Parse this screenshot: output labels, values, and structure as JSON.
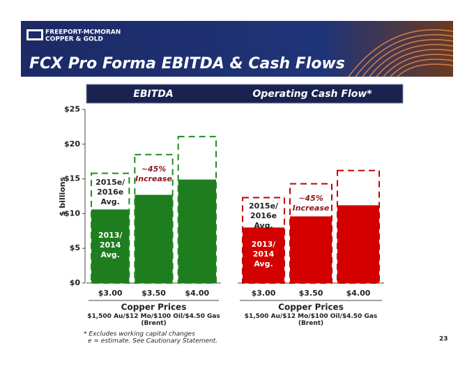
{
  "header": {
    "logo_line1": "FREEPORT-MCMORAN",
    "logo_line2": "COPPER & GOLD",
    "title": "FCX Pro Forma EBITDA & Cash Flows"
  },
  "chart_data": [
    {
      "type": "bar",
      "title": "EBITDA",
      "ylabel": "$ billions",
      "categories": [
        "$3.00",
        "$3.50",
        "$4.00"
      ],
      "series": [
        {
          "name": "2013/ 2014 Avg.",
          "color": "#1e7d1e",
          "values": [
            10.6,
            12.7,
            14.9
          ]
        },
        {
          "name": "2015e/ 2016e Avg.",
          "color": "#1e8c1e",
          "line_style": "dashed",
          "values": [
            15.8,
            18.5,
            21.1
          ]
        }
      ],
      "annotation": "~45% Increase",
      "xlabel": "Copper Prices",
      "xsublabel": "$1,500 Au/$12 Mo/$100 Oil/$4.50 Gas (Brent)",
      "ylim": [
        0,
        25
      ],
      "yticks": [
        {
          "value": 0,
          "label": "$0"
        },
        {
          "value": 5,
          "label": "$5"
        },
        {
          "value": 10,
          "label": "$10"
        },
        {
          "value": 15,
          "label": "$15"
        },
        {
          "value": 20,
          "label": "$20"
        },
        {
          "value": 25,
          "label": "$25"
        }
      ]
    },
    {
      "type": "bar",
      "title": "Operating Cash Flow*",
      "categories": [
        "$3.00",
        "$3.50",
        "$4.00"
      ],
      "series": [
        {
          "name": "2013/ 2014 Avg.",
          "color": "#d40000",
          "values": [
            8.0,
            9.6,
            11.2
          ]
        },
        {
          "name": "2015e/ 2016e Avg.",
          "color": "#c00000",
          "line_style": "dashed",
          "values": [
            12.3,
            14.3,
            16.2
          ]
        }
      ],
      "annotation": "~45% Increase",
      "xlabel": "Copper Prices",
      "xsublabel": "$1,500 Au/$12 Mo/$100 Oil/$4.50 Gas (Brent)",
      "ylim": [
        0,
        25
      ]
    }
  ],
  "footnotes": [
    "* Excludes working capital changes",
    "e = estimate. See Cautionary Statement."
  ],
  "page_number": "23"
}
